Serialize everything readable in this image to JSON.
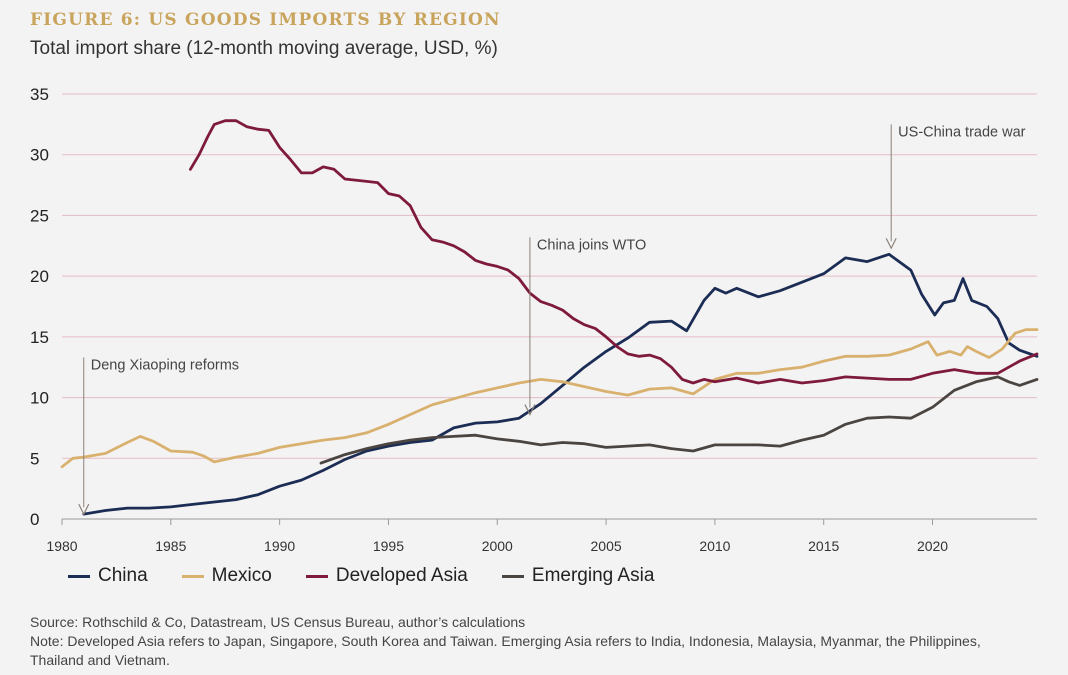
{
  "figure": {
    "title": "FIGURE 6: US GOODS IMPORTS BY REGION",
    "subtitle": "Total import share (12-month moving average, USD, %)",
    "source": "Source: Rothschild & Co, Datastream, US Census Bureau, author’s calculations",
    "note": "Note: Developed Asia refers to Japan, Singapore, South Korea and Taiwan. Emerging Asia refers to India, Indonesia, Malaysia, Myanmar, the Philippines, Thailand and Vietnam."
  },
  "colors": {
    "title": "#c9a45c",
    "grid": "#e3bcc5",
    "axis": "#9a9a9a",
    "annotation": "#8a8078"
  },
  "chart_data": {
    "type": "line",
    "title": "US goods imports by region",
    "xlabel": "",
    "ylabel": "",
    "xlim": [
      1980,
      2024.8
    ],
    "ylim": [
      0,
      35
    ],
    "x_ticks": [
      "1980",
      "1985",
      "1990",
      "1995",
      "2000",
      "2005",
      "2010",
      "2015",
      "2020"
    ],
    "y_ticks": [
      "0",
      "5",
      "10",
      "15",
      "20",
      "25",
      "30",
      "35"
    ],
    "grid": "horizontal",
    "legend_position": "bottom-left",
    "series": [
      {
        "name": "China",
        "color": "#1b2c55",
        "points": [
          [
            1981,
            0.4
          ],
          [
            1982,
            0.7
          ],
          [
            1983,
            0.9
          ],
          [
            1984,
            0.9
          ],
          [
            1985,
            1.0
          ],
          [
            1986,
            1.2
          ],
          [
            1987,
            1.4
          ],
          [
            1988,
            1.6
          ],
          [
            1989,
            2.0
          ],
          [
            1990,
            2.7
          ],
          [
            1991,
            3.2
          ],
          [
            1992,
            4.0
          ],
          [
            1993,
            4.9
          ],
          [
            1994,
            5.6
          ],
          [
            1995,
            6.0
          ],
          [
            1996,
            6.3
          ],
          [
            1997,
            6.5
          ],
          [
            1998,
            7.5
          ],
          [
            1999,
            7.9
          ],
          [
            2000,
            8.0
          ],
          [
            2001,
            8.3
          ],
          [
            2002,
            9.5
          ],
          [
            2003,
            11.0
          ],
          [
            2004,
            12.5
          ],
          [
            2005,
            13.8
          ],
          [
            2006,
            14.9
          ],
          [
            2007,
            16.2
          ],
          [
            2008,
            16.3
          ],
          [
            2008.7,
            15.5
          ],
          [
            2009.5,
            18.0
          ],
          [
            2010,
            19.0
          ],
          [
            2010.5,
            18.6
          ],
          [
            2011,
            19.0
          ],
          [
            2012,
            18.3
          ],
          [
            2013,
            18.8
          ],
          [
            2014,
            19.5
          ],
          [
            2015,
            20.2
          ],
          [
            2016,
            21.5
          ],
          [
            2017,
            21.2
          ],
          [
            2018,
            21.8
          ],
          [
            2019,
            20.5
          ],
          [
            2019.5,
            18.5
          ],
          [
            2020.1,
            16.8
          ],
          [
            2020.5,
            17.8
          ],
          [
            2021,
            18.0
          ],
          [
            2021.4,
            19.8
          ],
          [
            2021.8,
            18.0
          ],
          [
            2022.5,
            17.5
          ],
          [
            2023,
            16.5
          ],
          [
            2023.5,
            14.5
          ],
          [
            2024,
            13.9
          ],
          [
            2024.8,
            13.4
          ]
        ]
      },
      {
        "name": "Mexico",
        "color": "#d9b16f",
        "points": [
          [
            1980,
            4.3
          ],
          [
            1980.5,
            5.0
          ],
          [
            1981,
            5.1
          ],
          [
            1982,
            5.4
          ],
          [
            1983,
            6.3
          ],
          [
            1983.6,
            6.8
          ],
          [
            1984.2,
            6.4
          ],
          [
            1985,
            5.6
          ],
          [
            1986,
            5.5
          ],
          [
            1986.5,
            5.2
          ],
          [
            1987,
            4.7
          ],
          [
            1988,
            5.1
          ],
          [
            1989,
            5.4
          ],
          [
            1990,
            5.9
          ],
          [
            1991,
            6.2
          ],
          [
            1992,
            6.5
          ],
          [
            1993,
            6.7
          ],
          [
            1994,
            7.1
          ],
          [
            1995,
            7.8
          ],
          [
            1996,
            8.6
          ],
          [
            1997,
            9.4
          ],
          [
            1998,
            9.9
          ],
          [
            1999,
            10.4
          ],
          [
            2000,
            10.8
          ],
          [
            2001,
            11.2
          ],
          [
            2002,
            11.5
          ],
          [
            2003,
            11.3
          ],
          [
            2004,
            10.9
          ],
          [
            2005,
            10.5
          ],
          [
            2006,
            10.2
          ],
          [
            2007,
            10.7
          ],
          [
            2008,
            10.8
          ],
          [
            2009,
            10.3
          ],
          [
            2010,
            11.5
          ],
          [
            2011,
            12.0
          ],
          [
            2012,
            12.0
          ],
          [
            2013,
            12.3
          ],
          [
            2014,
            12.5
          ],
          [
            2015,
            13.0
          ],
          [
            2016,
            13.4
          ],
          [
            2017,
            13.4
          ],
          [
            2018,
            13.5
          ],
          [
            2019,
            14.0
          ],
          [
            2019.8,
            14.6
          ],
          [
            2020.2,
            13.5
          ],
          [
            2020.8,
            13.8
          ],
          [
            2021.3,
            13.5
          ],
          [
            2021.6,
            14.2
          ],
          [
            2022,
            13.8
          ],
          [
            2022.6,
            13.3
          ],
          [
            2023.2,
            14.0
          ],
          [
            2023.8,
            15.3
          ],
          [
            2024.3,
            15.6
          ],
          [
            2024.8,
            15.6
          ]
        ]
      },
      {
        "name": "Developed Asia",
        "color": "#7e1a3b",
        "points": [
          [
            1985.9,
            28.8
          ],
          [
            1986.3,
            30.0
          ],
          [
            1986.7,
            31.5
          ],
          [
            1987,
            32.5
          ],
          [
            1987.5,
            32.8
          ],
          [
            1988,
            32.8
          ],
          [
            1988.5,
            32.3
          ],
          [
            1989,
            32.1
          ],
          [
            1989.5,
            32.0
          ],
          [
            1990,
            30.6
          ],
          [
            1990.5,
            29.6
          ],
          [
            1991,
            28.5
          ],
          [
            1991.5,
            28.5
          ],
          [
            1992,
            29.0
          ],
          [
            1992.5,
            28.8
          ],
          [
            1993,
            28.0
          ],
          [
            1994,
            27.8
          ],
          [
            1994.5,
            27.7
          ],
          [
            1995,
            26.8
          ],
          [
            1995.5,
            26.6
          ],
          [
            1996,
            25.8
          ],
          [
            1996.5,
            24.0
          ],
          [
            1997,
            23.0
          ],
          [
            1997.5,
            22.8
          ],
          [
            1998,
            22.5
          ],
          [
            1998.5,
            22.0
          ],
          [
            1999,
            21.3
          ],
          [
            1999.5,
            21.0
          ],
          [
            2000,
            20.8
          ],
          [
            2000.5,
            20.5
          ],
          [
            2001,
            19.8
          ],
          [
            2001.5,
            18.6
          ],
          [
            2002,
            17.9
          ],
          [
            2002.5,
            17.6
          ],
          [
            2003,
            17.2
          ],
          [
            2003.5,
            16.5
          ],
          [
            2004,
            16.0
          ],
          [
            2004.5,
            15.7
          ],
          [
            2005,
            15.0
          ],
          [
            2005.5,
            14.2
          ],
          [
            2006,
            13.6
          ],
          [
            2006.5,
            13.4
          ],
          [
            2007,
            13.5
          ],
          [
            2007.5,
            13.2
          ],
          [
            2008,
            12.5
          ],
          [
            2008.5,
            11.5
          ],
          [
            2009,
            11.2
          ],
          [
            2009.5,
            11.5
          ],
          [
            2010,
            11.3
          ],
          [
            2011,
            11.6
          ],
          [
            2012,
            11.2
          ],
          [
            2013,
            11.5
          ],
          [
            2014,
            11.2
          ],
          [
            2015,
            11.4
          ],
          [
            2016,
            11.7
          ],
          [
            2017,
            11.6
          ],
          [
            2018,
            11.5
          ],
          [
            2019,
            11.5
          ],
          [
            2020,
            12.0
          ],
          [
            2021,
            12.3
          ],
          [
            2022,
            12.0
          ],
          [
            2023,
            12.0
          ],
          [
            2024,
            13.0
          ],
          [
            2024.8,
            13.6
          ]
        ]
      },
      {
        "name": "Emerging Asia",
        "color": "#4a4540",
        "points": [
          [
            1991.9,
            4.6
          ],
          [
            1993,
            5.3
          ],
          [
            1994,
            5.8
          ],
          [
            1995,
            6.2
          ],
          [
            1996,
            6.5
          ],
          [
            1997,
            6.7
          ],
          [
            1998,
            6.8
          ],
          [
            1999,
            6.9
          ],
          [
            2000,
            6.6
          ],
          [
            2001,
            6.4
          ],
          [
            2002,
            6.1
          ],
          [
            2003,
            6.3
          ],
          [
            2004,
            6.2
          ],
          [
            2005,
            5.9
          ],
          [
            2006,
            6.0
          ],
          [
            2007,
            6.1
          ],
          [
            2008,
            5.8
          ],
          [
            2009,
            5.6
          ],
          [
            2010,
            6.1
          ],
          [
            2011,
            6.1
          ],
          [
            2012,
            6.1
          ],
          [
            2013,
            6.0
          ],
          [
            2014,
            6.5
          ],
          [
            2015,
            6.9
          ],
          [
            2016,
            7.8
          ],
          [
            2017,
            8.3
          ],
          [
            2018,
            8.4
          ],
          [
            2019,
            8.3
          ],
          [
            2020,
            9.2
          ],
          [
            2021,
            10.6
          ],
          [
            2022,
            11.3
          ],
          [
            2023,
            11.7
          ],
          [
            2023.5,
            11.3
          ],
          [
            2024,
            11.0
          ],
          [
            2024.8,
            11.5
          ]
        ]
      }
    ],
    "annotations": [
      {
        "label": "Deng Xiaoping reforms",
        "x": 1981,
        "from_y": 13.3,
        "to_y": 0.4
      },
      {
        "label": "China joins WTO",
        "x": 2001.5,
        "from_y": 23.2,
        "to_y": 8.6
      },
      {
        "label": "US-China trade war",
        "x": 2018.1,
        "from_y": 32.5,
        "to_y": 22.3
      }
    ]
  }
}
